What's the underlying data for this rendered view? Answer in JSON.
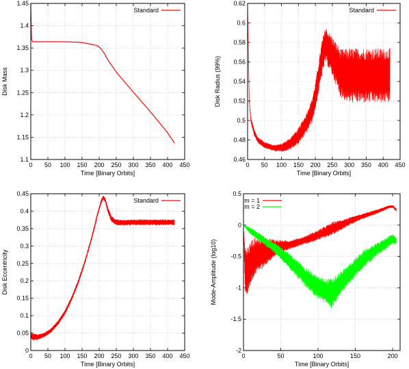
{
  "chart_data": [
    {
      "type": "line",
      "xlabel": "Time [Binary Orbits]",
      "ylabel": "Disk Mass",
      "xlim": [
        0,
        450
      ],
      "ylim": [
        1.1,
        1.45
      ],
      "xticks": [
        "0",
        "50",
        "100",
        "150",
        "200",
        "250",
        "300",
        "350",
        "400",
        "450"
      ],
      "yticks": [
        "1.1",
        "1.15",
        "1.2",
        "1.25",
        "1.3",
        "1.35",
        "1.4",
        "1.45"
      ],
      "grid": true,
      "legend": "top-right",
      "series": [
        {
          "name": "Standard",
          "color": "#ff0000",
          "x": [
            0,
            2,
            5,
            20,
            50,
            100,
            140,
            160,
            180,
            195,
            205,
            215,
            225,
            250,
            300,
            350,
            400,
            420
          ],
          "y": [
            1.45,
            1.37,
            1.364,
            1.364,
            1.364,
            1.364,
            1.363,
            1.361,
            1.358,
            1.355,
            1.349,
            1.338,
            1.324,
            1.296,
            1.251,
            1.207,
            1.16,
            1.137
          ]
        }
      ]
    },
    {
      "type": "line",
      "xlabel": "Time [Binary Orbits]",
      "ylabel": "Disk Radius (99%)",
      "xlim": [
        0,
        450
      ],
      "ylim": [
        0.46,
        0.62
      ],
      "xticks": [
        "0",
        "50",
        "100",
        "150",
        "200",
        "250",
        "300",
        "350",
        "400",
        "450"
      ],
      "yticks": [
        "0.46",
        "0.48",
        "0.5",
        "0.52",
        "0.54",
        "0.56",
        "0.58",
        "0.6",
        "0.62"
      ],
      "grid": true,
      "legend": "top-right",
      "series": [
        {
          "name": "Standard",
          "color": "#ff0000",
          "x": [
            0,
            5,
            10,
            20,
            30,
            50,
            75,
            100,
            125,
            150,
            170,
            190,
            200,
            210,
            220,
            230,
            250,
            275,
            300,
            350,
            400,
            420
          ],
          "y": [
            0.62,
            0.52,
            0.5,
            0.487,
            0.48,
            0.475,
            0.472,
            0.472,
            0.476,
            0.484,
            0.495,
            0.51,
            0.525,
            0.545,
            0.565,
            0.578,
            0.566,
            0.548,
            0.546,
            0.546,
            0.546,
            0.546
          ],
          "amplitude": [
            0,
            0.002,
            0.003,
            0.003,
            0.003,
            0.003,
            0.003,
            0.004,
            0.006,
            0.008,
            0.01,
            0.012,
            0.014,
            0.016,
            0.018,
            0.018,
            0.02,
            0.025,
            0.028,
            0.028,
            0.028,
            0.028
          ]
        }
      ]
    },
    {
      "type": "line",
      "xlabel": "Time [Binary Orbits]",
      "ylabel": "Disk Eccentricity",
      "xlim": [
        0,
        450
      ],
      "ylim": [
        0,
        0.45
      ],
      "xticks": [
        "0",
        "50",
        "100",
        "150",
        "200",
        "250",
        "300",
        "350",
        "400",
        "450"
      ],
      "yticks": [
        "0",
        "0.05",
        "0.1",
        "0.15",
        "0.2",
        "0.25",
        "0.3",
        "0.35",
        "0.4",
        "0.45"
      ],
      "grid": true,
      "legend": "top-right",
      "series": [
        {
          "name": "Standard",
          "color": "#ff0000",
          "x": [
            0,
            5,
            20,
            40,
            60,
            80,
            100,
            120,
            140,
            160,
            180,
            195,
            205,
            212,
            218,
            225,
            235,
            245,
            260,
            300,
            350,
            420
          ],
          "y": [
            0.045,
            0.04,
            0.038,
            0.045,
            0.058,
            0.08,
            0.11,
            0.15,
            0.2,
            0.26,
            0.33,
            0.39,
            0.425,
            0.44,
            0.432,
            0.405,
            0.38,
            0.37,
            0.367,
            0.368,
            0.368,
            0.368
          ],
          "amplitude": [
            0.01,
            0.01,
            0.008,
            0.006,
            0.006,
            0.006,
            0.006,
            0.006,
            0.006,
            0.006,
            0.006,
            0.006,
            0.006,
            0.006,
            0.006,
            0.008,
            0.008,
            0.008,
            0.008,
            0.008,
            0.008,
            0.008
          ]
        }
      ]
    },
    {
      "type": "line",
      "xlabel": "Time [Binary Orbits]",
      "ylabel": "Mode-Amplitude (log10)",
      "xlim": [
        0,
        210
      ],
      "ylim": [
        -2,
        0.5
      ],
      "xticks": [
        "0",
        "50",
        "100",
        "150",
        "200"
      ],
      "yticks": [
        "-2",
        "-1.5",
        "-1",
        "-0.5",
        "0",
        "0.5"
      ],
      "grid": true,
      "legend": "top-left",
      "series": [
        {
          "name": "m = 1",
          "color": "#ff0000",
          "x": [
            0,
            2,
            5,
            10,
            15,
            25,
            40,
            50,
            60,
            80,
            100,
            120,
            140,
            160,
            180,
            195,
            200,
            205
          ],
          "y": [
            0.0,
            -0.7,
            -0.75,
            -0.6,
            -0.5,
            -0.45,
            -0.37,
            -0.34,
            -0.32,
            -0.25,
            -0.16,
            -0.05,
            0.05,
            0.14,
            0.22,
            0.29,
            0.3,
            0.24
          ],
          "amplitude": [
            0,
            0.35,
            0.4,
            0.35,
            0.3,
            0.25,
            0.15,
            0.1,
            0.07,
            0.06,
            0.08,
            0.1,
            0.06,
            0.04,
            0.03,
            0.02,
            0.02,
            0.02
          ]
        },
        {
          "name": "m = 2",
          "color": "#00ff00",
          "x": [
            0,
            5,
            10,
            20,
            40,
            60,
            80,
            100,
            110,
            118,
            125,
            140,
            160,
            180,
            200,
            205
          ],
          "y": [
            0.0,
            -0.05,
            -0.1,
            -0.18,
            -0.35,
            -0.55,
            -0.8,
            -1.0,
            -1.05,
            -1.1,
            -1.0,
            -0.8,
            -0.55,
            -0.38,
            -0.22,
            -0.25
          ],
          "amplitude": [
            0,
            0.03,
            0.05,
            0.06,
            0.08,
            0.12,
            0.15,
            0.18,
            0.2,
            0.25,
            0.2,
            0.16,
            0.14,
            0.1,
            0.08,
            0.05
          ]
        }
      ]
    }
  ]
}
